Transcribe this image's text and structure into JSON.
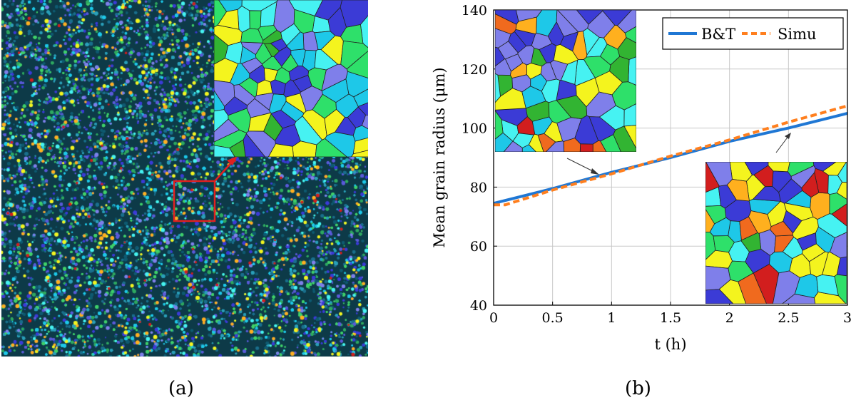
{
  "panel_labels": {
    "a": "(a)",
    "b": "(b)"
  },
  "palette": [
    "#3b3bd6",
    "#7f7fea",
    "#1ec8e8",
    "#46f2f2",
    "#2ee06a",
    "#32b432",
    "#f4f41e",
    "#ffb01e",
    "#f06a1e",
    "#d21e1e"
  ],
  "chart_data": {
    "type": "line",
    "title": "",
    "xlabel": "t (h)",
    "ylabel": "Mean grain radius (μm)",
    "xlim": [
      0,
      3
    ],
    "ylim": [
      40,
      140
    ],
    "xticks": [
      0,
      0.5,
      1,
      1.5,
      2,
      2.5,
      3
    ],
    "xtick_labels": [
      "0",
      "0.5",
      "1",
      "1.5",
      "2",
      "2.5",
      "3"
    ],
    "yticks": [
      40,
      60,
      80,
      100,
      120,
      140
    ],
    "ytick_labels": [
      "40",
      "60",
      "80",
      "100",
      "120",
      "140"
    ],
    "grid": true,
    "legend": "top-right",
    "series": [
      {
        "name": "B&T",
        "color": "#1f77d4",
        "style": "solid",
        "x": [
          0,
          0.5,
          1,
          1.5,
          2,
          2.5,
          3
        ],
        "y": [
          74.5,
          79.5,
          85,
          90,
          95.5,
          100,
          105
        ]
      },
      {
        "name": "Simu",
        "color": "#ff7f1e",
        "style": "dashed",
        "x": [
          0,
          0.1,
          0.5,
          1,
          1.5,
          2,
          2.5,
          3
        ],
        "y": [
          74,
          74,
          79,
          84.5,
          90.5,
          96,
          102,
          107.5
        ]
      }
    ]
  }
}
